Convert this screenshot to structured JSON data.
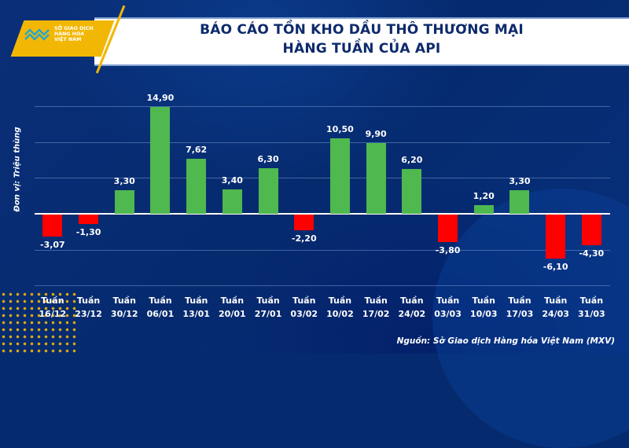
{
  "header": {
    "logo_text": [
      "SỞ GIAO DỊCH",
      "HÀNG HÓA",
      "VIỆT NAM"
    ],
    "title_line1": "BÁO CÁO TỒN KHO DẦU THÔ THƯƠNG MẠI",
    "title_line2": "HÀNG TUẦN CỦA API"
  },
  "axis": {
    "ylabel": "Đơn vị: Triệu thùng"
  },
  "source": "Nguồn: Sở Giao dịch Hàng hóa Việt Nam (MXV)",
  "colors": {
    "positive": "#4fb84f",
    "negative": "#ff0000",
    "background": "#062a6e",
    "title": "#0d2a6b",
    "accent": "#f2b705"
  },
  "chart_data": {
    "type": "bar",
    "title": "BÁO CÁO TỒN KHO DẦU THÔ THƯƠNG MẠI HÀNG TUẦN CỦA API",
    "xlabel": "",
    "ylabel": "Đơn vị: Triệu thùng",
    "categories": [
      "Tuần 16/12",
      "Tuần 23/12",
      "Tuần 30/12",
      "Tuần 06/01",
      "Tuần 13/01",
      "Tuần 20/01",
      "Tuần 27/01",
      "Tuần 03/02",
      "Tuần 10/02",
      "Tuần 17/02",
      "Tuần 24/02",
      "Tuần 03/03",
      "Tuần 10/03",
      "Tuần 17/03",
      "Tuần 24/03",
      "Tuần 31/03"
    ],
    "values": [
      -3.07,
      -1.3,
      3.3,
      14.9,
      7.62,
      3.4,
      6.3,
      -2.2,
      10.5,
      9.9,
      6.2,
      -3.8,
      1.2,
      3.3,
      -6.1,
      -4.3
    ],
    "labels": [
      "-3,07",
      "-1,30",
      "3,30",
      "14,90",
      "7,62",
      "3,40",
      "6,30",
      "-2,20",
      "10,50",
      "9,90",
      "6,20",
      "-3,80",
      "1,20",
      "3,30",
      "-6,10",
      "-4,30"
    ],
    "ylim": [
      -10,
      15
    ],
    "gridlines": [
      15,
      10,
      5,
      0,
      -5,
      -10
    ],
    "grid": true,
    "legend": null
  },
  "xticks": [
    {
      "week": "Tuần",
      "date": "16/12"
    },
    {
      "week": "Tuần",
      "date": "23/12"
    },
    {
      "week": "Tuần",
      "date": "30/12"
    },
    {
      "week": "Tuần",
      "date": "06/01"
    },
    {
      "week": "Tuần",
      "date": "13/01"
    },
    {
      "week": "Tuần",
      "date": "20/01"
    },
    {
      "week": "Tuần",
      "date": "27/01"
    },
    {
      "week": "Tuần",
      "date": "03/02"
    },
    {
      "week": "Tuần",
      "date": "10/02"
    },
    {
      "week": "Tuần",
      "date": "17/02"
    },
    {
      "week": "Tuần",
      "date": "24/02"
    },
    {
      "week": "Tuần",
      "date": "03/03"
    },
    {
      "week": "Tuần",
      "date": "10/03"
    },
    {
      "week": "Tuần",
      "date": "17/03"
    },
    {
      "week": "Tuần",
      "date": "24/03"
    },
    {
      "week": "Tuần",
      "date": "31/03"
    }
  ]
}
